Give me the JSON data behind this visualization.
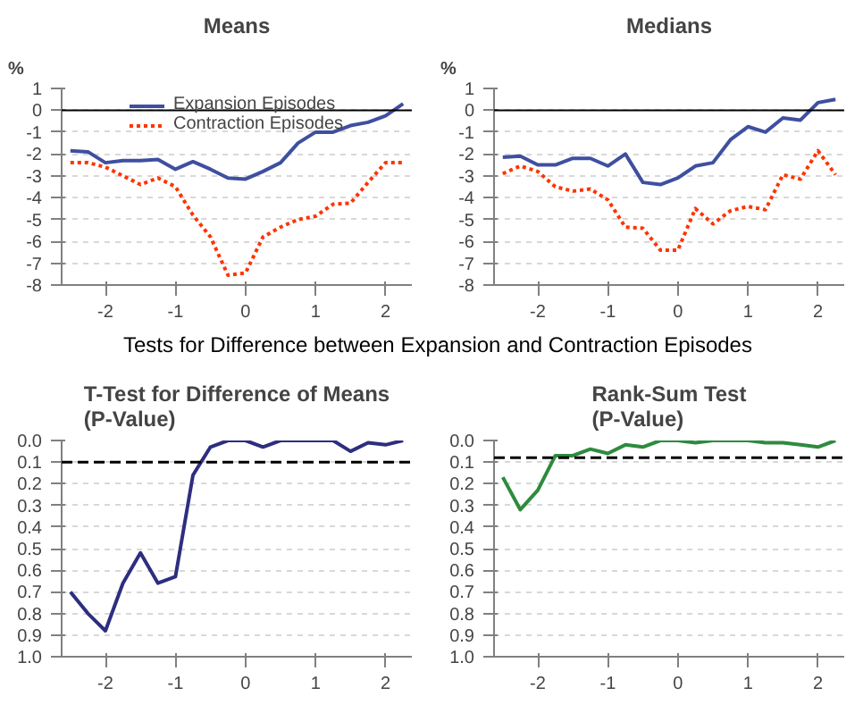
{
  "chart_data": [
    {
      "type": "line",
      "title": "Means",
      "ylabel": "%",
      "x": [
        -2.5,
        -2.25,
        -2,
        -1.75,
        -1.5,
        -1.25,
        -1,
        -0.75,
        -0.5,
        -0.25,
        0,
        0.25,
        0.5,
        0.75,
        1,
        1.25,
        1.5,
        1.75,
        2,
        2.25
      ],
      "series": [
        {
          "name": "Expansion Episodes",
          "color": "#3f4fa0",
          "line_style": "solid",
          "values": [
            -1.85,
            -1.9,
            -2.4,
            -2.3,
            -2.3,
            -2.25,
            -2.7,
            -2.35,
            -2.7,
            -3.1,
            -3.15,
            -2.8,
            -2.4,
            -1.5,
            -1.0,
            -1.0,
            -0.7,
            -0.55,
            -0.25,
            0.3
          ]
        },
        {
          "name": "Contraction Episodes",
          "color": "#ff3300",
          "line_style": "dotted",
          "values": [
            -2.4,
            -2.4,
            -2.6,
            -3.0,
            -3.4,
            -3.1,
            -3.5,
            -4.8,
            -5.8,
            -7.55,
            -7.45,
            -5.8,
            -5.35,
            -5.0,
            -4.85,
            -4.3,
            -4.25,
            -3.3,
            -2.4,
            -2.4
          ]
        }
      ],
      "xlim": [
        -2.625,
        2.375
      ],
      "xticks": [
        -2,
        -1,
        0,
        1,
        2
      ],
      "ylim": [
        -8,
        1
      ],
      "yticks": [
        -8,
        -7,
        -6,
        -5,
        -4,
        -3,
        -2,
        -1,
        0,
        1
      ],
      "ref_lines": [
        {
          "axis": "y",
          "value": 0,
          "label": null,
          "color": "#000000",
          "line_style": "solid"
        }
      ],
      "grid": "y",
      "legend": "top"
    },
    {
      "type": "line",
      "title": "Medians",
      "ylabel": "%",
      "x": [
        -2.5,
        -2.25,
        -2,
        -1.75,
        -1.5,
        -1.25,
        -1,
        -0.75,
        -0.5,
        -0.25,
        0,
        0.25,
        0.5,
        0.75,
        1,
        1.25,
        1.5,
        1.75,
        2,
        2.25
      ],
      "series": [
        {
          "color": "#3f4fa0",
          "line_style": "solid",
          "values": [
            -2.15,
            -2.1,
            -2.5,
            -2.5,
            -2.2,
            -2.2,
            -2.55,
            -2.0,
            -3.3,
            -3.4,
            -3.1,
            -2.55,
            -2.4,
            -1.35,
            -0.75,
            -1.0,
            -0.35,
            -0.45,
            0.35,
            0.5
          ]
        },
        {
          "color": "#ff3300",
          "line_style": "dotted",
          "values": [
            -2.9,
            -2.55,
            -2.8,
            -3.5,
            -3.7,
            -3.6,
            -4.1,
            -5.35,
            -5.4,
            -6.4,
            -6.4,
            -4.5,
            -5.2,
            -4.6,
            -4.4,
            -4.55,
            -2.95,
            -3.15,
            -1.85,
            -2.95
          ]
        }
      ],
      "xlim": [
        -2.625,
        2.375
      ],
      "xticks": [
        -2,
        -1,
        0,
        1,
        2
      ],
      "ylim": [
        -8,
        1
      ],
      "yticks": [
        -8,
        -7,
        -6,
        -5,
        -4,
        -3,
        -2,
        -1,
        0,
        1
      ],
      "ref_lines": [
        {
          "axis": "y",
          "value": 0,
          "label": null,
          "color": "#000000",
          "line_style": "solid"
        }
      ],
      "grid": "y"
    },
    {
      "type": "line",
      "title": "T-Test for Difference of Means\n(P-Value)",
      "annotations": [
        "Tests for Difference between Expansion and Contraction Episodes"
      ],
      "x": [
        -2.5,
        -2.25,
        -2,
        -1.75,
        -1.5,
        -1.25,
        -1,
        -0.75,
        -0.5,
        -0.25,
        0,
        0.25,
        0.5,
        0.75,
        1,
        1.25,
        1.5,
        1.75,
        2,
        2.25
      ],
      "series": [
        {
          "color": "#2e2e80",
          "line_style": "solid",
          "values": [
            0.7,
            0.8,
            0.88,
            0.66,
            0.52,
            0.66,
            0.63,
            0.16,
            0.03,
            0.0,
            0.0,
            0.03,
            0.0,
            0.0,
            0.0,
            0.0,
            0.05,
            0.01,
            0.02,
            0.0
          ]
        }
      ],
      "xlim": [
        -2.625,
        2.375
      ],
      "xticks": [
        -2,
        -1,
        0,
        1,
        2
      ],
      "ylim": [
        1.0,
        0.0
      ],
      "yticks": [
        {
          "value": 0,
          "label": "0.0"
        },
        {
          "value": 0.1,
          "label": "0.1"
        },
        {
          "value": 0.2,
          "label": "0.2"
        },
        {
          "value": 0.3,
          "label": "0.3"
        },
        {
          "value": 0.4,
          "label": "0.4"
        },
        {
          "value": 0.5,
          "label": "0.5"
        },
        {
          "value": 0.6,
          "label": "0.6"
        },
        {
          "value": 0.7,
          "label": "0.7"
        },
        {
          "value": 0.8,
          "label": "0.8"
        },
        {
          "value": 0.9,
          "label": "0.9"
        },
        {
          "value": 1.0,
          "label": "1.0"
        }
      ],
      "ref_lines": [
        {
          "axis": "y",
          "value": 0.1,
          "label": null,
          "color": "#000000",
          "line_style": "dashed"
        }
      ],
      "grid": "y"
    },
    {
      "type": "line",
      "title": "Rank-Sum Test\n(P-Value)",
      "x": [
        -2.5,
        -2.25,
        -2,
        -1.75,
        -1.5,
        -1.25,
        -1,
        -0.75,
        -0.5,
        -0.25,
        0,
        0.25,
        0.5,
        0.75,
        1,
        1.25,
        1.5,
        1.75,
        2,
        2.25
      ],
      "series": [
        {
          "color": "#2e8b3e",
          "line_style": "solid",
          "values": [
            0.17,
            0.32,
            0.23,
            0.07,
            0.07,
            0.04,
            0.06,
            0.02,
            0.03,
            0.0,
            0.0,
            0.01,
            0.0,
            0.0,
            0.0,
            0.01,
            0.01,
            0.02,
            0.03,
            0.0
          ]
        }
      ],
      "xlim": [
        -2.625,
        2.375
      ],
      "xticks": [
        -2,
        -1,
        0,
        1,
        2
      ],
      "ylim": [
        1.0,
        0.0
      ],
      "yticks": [
        {
          "value": 0,
          "label": "0.0"
        },
        {
          "value": 0.1,
          "label": "0.1"
        },
        {
          "value": 0.2,
          "label": "0.2"
        },
        {
          "value": 0.3,
          "label": "0.3"
        },
        {
          "value": 0.4,
          "label": "0.4"
        },
        {
          "value": 0.5,
          "label": "0.5"
        },
        {
          "value": 0.6,
          "label": "0.6"
        },
        {
          "value": 0.7,
          "label": "0.7"
        },
        {
          "value": 0.8,
          "label": "0.8"
        },
        {
          "value": 0.9,
          "label": "0.9"
        },
        {
          "value": 1.0,
          "label": "1.0"
        }
      ],
      "ref_lines": [
        {
          "axis": "y",
          "value": 0.08,
          "label": null,
          "color": "#000000",
          "line_style": "dashed"
        }
      ],
      "grid": "y"
    }
  ]
}
